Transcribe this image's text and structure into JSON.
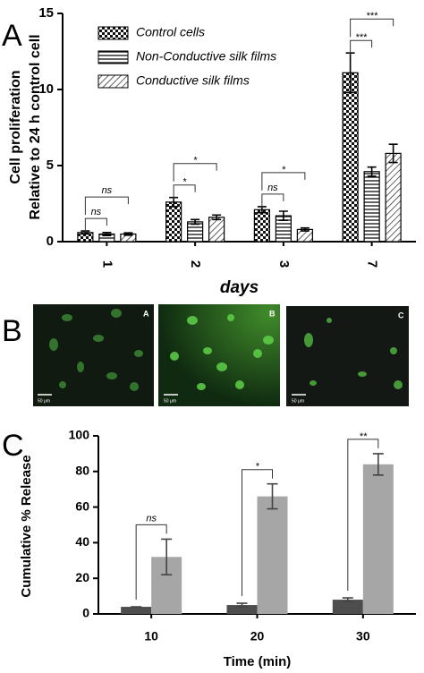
{
  "panel_labels": [
    "A",
    "B",
    "C"
  ],
  "chart_data": [
    {
      "type": "bar",
      "ylabel": [
        "Cell proliferation",
        "Relative to 24 h control cell"
      ],
      "xlabel": "days",
      "categories": [
        "1",
        "2",
        "3",
        "7"
      ],
      "xtick_rotation": 90,
      "ylim": [
        0,
        15
      ],
      "yticks": [
        0,
        5,
        10,
        15
      ],
      "legend": "upper left",
      "series": [
        {
          "name": "Control cells",
          "pattern": "checker",
          "values": [
            0.6,
            2.6,
            2.1,
            11.1
          ],
          "errors": [
            0.1,
            0.3,
            0.2,
            1.3
          ]
        },
        {
          "name": "Non-Conductive silk films",
          "pattern": "horizontal",
          "values": [
            0.5,
            1.3,
            1.7,
            4.6
          ],
          "errors": [
            0.1,
            0.15,
            0.3,
            0.3
          ]
        },
        {
          "name": "Conductive silk films",
          "pattern": "diagonal",
          "values": [
            0.5,
            1.6,
            0.8,
            5.8
          ],
          "errors": [
            0.08,
            0.15,
            0.1,
            0.6
          ]
        }
      ],
      "significance": [
        [
          "ns",
          "ns"
        ],
        [
          "*",
          "*"
        ],
        [
          "ns",
          "*"
        ],
        [
          "***",
          "***"
        ]
      ]
    },
    {
      "type": "bar",
      "ylabel": [
        "Cumulative % Release"
      ],
      "xlabel": "Time (min)",
      "categories": [
        "10",
        "20",
        "30"
      ],
      "ylim": [
        0,
        100
      ],
      "yticks": [
        0,
        20,
        40,
        60,
        80,
        100
      ],
      "series": [
        {
          "color": "#4d4d4d",
          "values": [
            4,
            5,
            8
          ],
          "errors": [
            0,
            1,
            1
          ]
        },
        {
          "color": "#a6a6a6",
          "values": [
            32,
            66,
            84
          ],
          "errors": [
            10,
            7,
            6
          ]
        }
      ],
      "significance": [
        [
          "ns"
        ],
        [
          "*"
        ],
        [
          "**"
        ]
      ]
    }
  ],
  "images": [
    {
      "label": "A",
      "scale": "50 μm"
    },
    {
      "label": "B",
      "scale": "50 μm"
    },
    {
      "label": "C",
      "scale": "50 μm"
    }
  ]
}
